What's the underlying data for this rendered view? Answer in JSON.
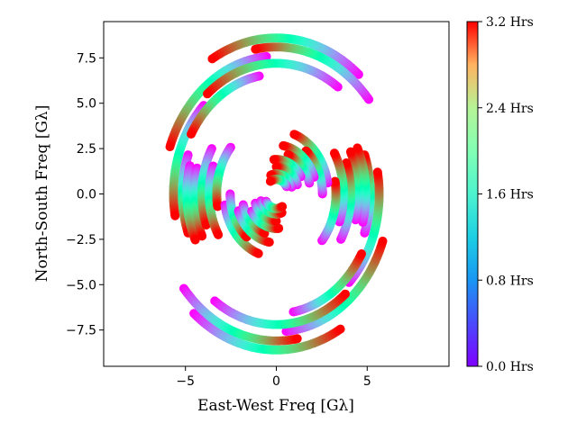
{
  "chart_data": {
    "type": "scatter",
    "title": "",
    "xlabel": "East-West Freq [Gλ]",
    "ylabel": "North-South Freq [Gλ]",
    "xlim": [
      -9.5,
      9.5
    ],
    "ylim": [
      -9.5,
      9.5
    ],
    "xticks": [
      -5,
      0,
      5
    ],
    "xtick_labels": [
      "−5",
      "0",
      "5"
    ],
    "yticks": [
      -7.5,
      -5.0,
      -2.5,
      0.0,
      2.5,
      5.0,
      7.5
    ],
    "ytick_labels": [
      "−7.5",
      "−5.0",
      "−2.5",
      "0.0",
      "2.5",
      "5.0",
      "7.5"
    ],
    "grid": false,
    "legend": "none",
    "colormap": "rainbow",
    "colorbar": {
      "range_hours": [
        0.0,
        3.2
      ],
      "tick_labels": [
        "0.0 Hrs",
        "0.8 Hrs",
        "1.6 Hrs",
        "2.4 Hrs",
        "3.2 Hrs"
      ]
    },
    "description_tracks": [
      {
        "radius": 8.6,
        "start_deg": 50,
        "end_deg": 120
      },
      {
        "radius": 8.1,
        "start_deg": 40,
        "end_deg": 100
      },
      {
        "radius": 7.6,
        "start_deg": 95,
        "end_deg": 160
      },
      {
        "radius": 7.2,
        "start_deg": 55,
        "end_deg": 130
      },
      {
        "radius": 6.9,
        "start_deg": 135,
        "end_deg": 190
      },
      {
        "radius": 6.6,
        "start_deg": 100,
        "end_deg": 150
      },
      {
        "radius": 6.3,
        "start_deg": -20,
        "end_deg": 20
      },
      {
        "radius": 6.0,
        "start_deg": 165,
        "end_deg": 205
      },
      {
        "radius": 5.5,
        "start_deg": -15,
        "end_deg": 25
      },
      {
        "radius": 5.0,
        "start_deg": 150,
        "end_deg": 200
      },
      {
        "radius": 4.5,
        "start_deg": -20,
        "end_deg": 30
      },
      {
        "radius": 4.0,
        "start_deg": 140,
        "end_deg": 190
      },
      {
        "radius": 3.5,
        "start_deg": 10,
        "end_deg": 70
      },
      {
        "radius": 3.1,
        "start_deg": 180,
        "end_deg": 230
      },
      {
        "radius": 2.7,
        "start_deg": 20,
        "end_deg": 80
      },
      {
        "radius": 2.3,
        "start_deg": 195,
        "end_deg": 250
      },
      {
        "radius": 1.9,
        "start_deg": 30,
        "end_deg": 95
      },
      {
        "radius": 1.5,
        "start_deg": 200,
        "end_deg": 270
      },
      {
        "radius": 1.1,
        "start_deg": 20,
        "end_deg": 110
      },
      {
        "radius": 0.8,
        "start_deg": 210,
        "end_deg": 300
      }
    ]
  }
}
